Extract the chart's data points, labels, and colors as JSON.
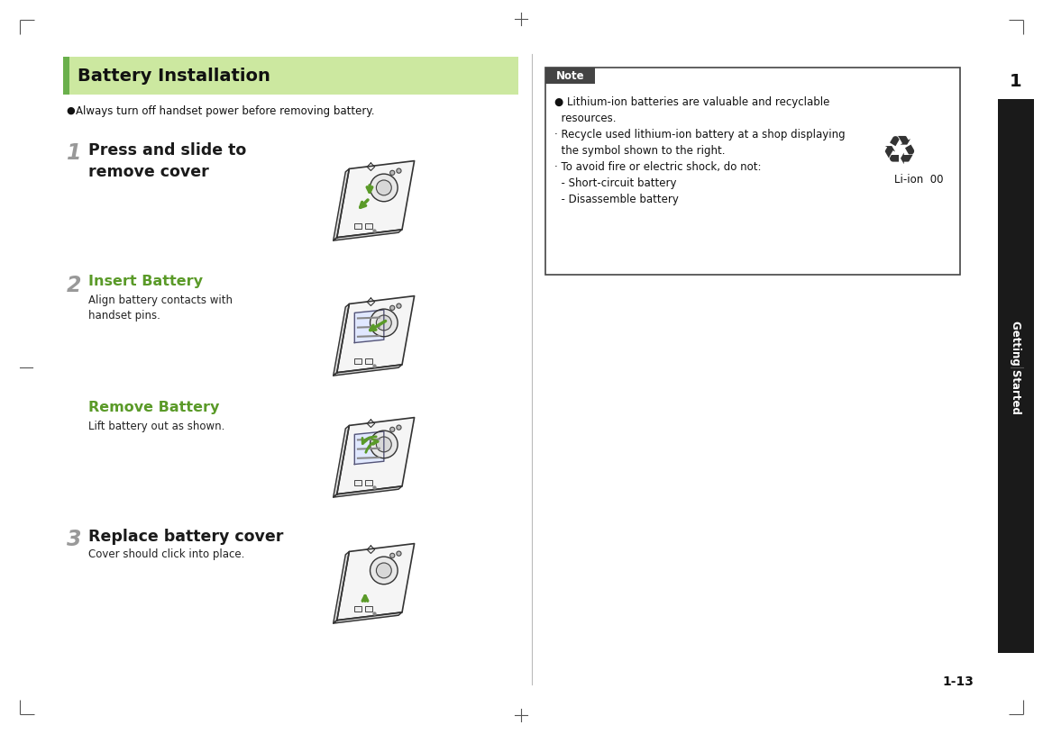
{
  "title": "Battery Installation",
  "title_bg_color": "#cce8a0",
  "title_bar_color": "#6ab04c",
  "bg_color": "#ffffff",
  "page_num": "1-13",
  "chapter_num": "1",
  "chapter_title": "Getting Started",
  "intro_bullet": "Always turn off handset power before removing battery.",
  "step1_num": "1",
  "step1_heading": "Press and slide to\nremove cover",
  "step1_body": "",
  "step1_head_green": false,
  "step2_num": "2",
  "step2_heading": "Insert Battery",
  "step2_body": "Align battery contacts with\nhandset pins.",
  "step2_head_green": true,
  "step3_num": "",
  "step3_heading": "Remove Battery",
  "step3_body": "Lift battery out as shown.",
  "step3_head_green": true,
  "step4_num": "3",
  "step4_heading": "Replace battery cover",
  "step4_body": "Cover should click into place.",
  "step4_head_green": false,
  "note_title": "Note",
  "note_line1": "● Lithium-ion batteries are valuable and recyclable",
  "note_line1b": "  resources.",
  "note_line2": "· Recycle used lithium-ion battery at a shop displaying",
  "note_line2b": "  the symbol shown to the right.",
  "note_line3": "· To avoid fire or electric shock, do not:",
  "note_line4": "  - Short-circuit battery",
  "note_line5": "  - Disassemble battery",
  "li_ion_text": "Li-ion  00",
  "step_num_color": "#999999",
  "green_color": "#5a9a28",
  "black_color": "#1a1a1a",
  "note_border": "#444444",
  "note_title_bg": "#444444",
  "note_title_fg": "#ffffff",
  "right_tab_bg": "#1a1a1a",
  "right_tab_fg": "#ffffff",
  "divider_color": "#bbbbbb"
}
